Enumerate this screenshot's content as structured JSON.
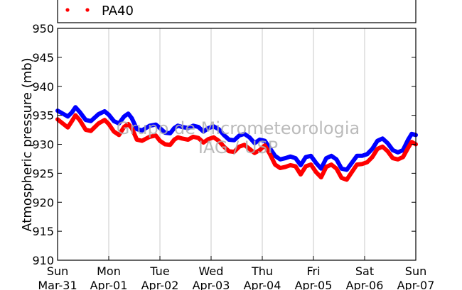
{
  "chart_data": {
    "type": "line",
    "ylabel": "Atmospheric pressure (mb)",
    "ylim": [
      910,
      950
    ],
    "yticks": [
      910,
      915,
      920,
      925,
      930,
      935,
      940,
      945,
      950
    ],
    "xticks": [
      {
        "day": "Sun",
        "date": "Mar-31"
      },
      {
        "day": "Mon",
        "date": "Apr-01"
      },
      {
        "day": "Tue",
        "date": "Apr-02"
      },
      {
        "day": "Wed",
        "date": "Apr-03"
      },
      {
        "day": "Thu",
        "date": "Apr-04"
      },
      {
        "day": "Fri",
        "date": "Apr-05"
      },
      {
        "day": "Sat",
        "date": "Apr-06"
      },
      {
        "day": "Sun",
        "date": "Apr-07"
      }
    ],
    "grid": "vertical",
    "legend_position": "top-left",
    "series": [
      {
        "name": "",
        "color": "#0000ff",
        "x": [
          0,
          0.1,
          0.2,
          0.28,
          0.35,
          0.43,
          0.55,
          0.65,
          0.8,
          0.92,
          1.0,
          1.1,
          1.2,
          1.3,
          1.38,
          1.45,
          1.55,
          1.65,
          1.8,
          1.92,
          2.0,
          2.1,
          2.2,
          2.28,
          2.35,
          2.43,
          2.55,
          2.65,
          2.75,
          2.85,
          2.95,
          3.05,
          3.15,
          3.25,
          3.35,
          3.45,
          3.55,
          3.65,
          3.75,
          3.85,
          3.95,
          4.05,
          4.15,
          4.25,
          4.35,
          4.45,
          4.55,
          4.65,
          4.75,
          4.85,
          4.95,
          5.05,
          5.15,
          5.25,
          5.35,
          5.45,
          5.55,
          5.65,
          5.75,
          5.85,
          5.95,
          6.05,
          6.15,
          6.25,
          6.35,
          6.45,
          6.55,
          6.65,
          6.75,
          6.85,
          6.92,
          7.0
        ],
        "y": [
          935.8,
          935.3,
          934.8,
          935.5,
          936.4,
          935.6,
          934.2,
          934.0,
          935.2,
          935.7,
          935.1,
          934.0,
          933.6,
          934.8,
          935.3,
          934.5,
          932.6,
          932.4,
          933.2,
          933.4,
          932.8,
          932.0,
          931.9,
          932.8,
          933.2,
          933.0,
          932.8,
          933.2,
          933.0,
          932.2,
          932.8,
          933.1,
          932.6,
          931.6,
          930.8,
          930.7,
          931.5,
          931.8,
          931.2,
          930.2,
          930.8,
          930.6,
          929.3,
          928.0,
          927.4,
          927.6,
          927.9,
          927.6,
          926.4,
          927.8,
          928.0,
          926.8,
          925.8,
          927.6,
          928.0,
          927.4,
          925.8,
          925.6,
          926.8,
          928.0,
          928.0,
          928.3,
          929.2,
          930.6,
          931.0,
          930.2,
          929.0,
          928.6,
          929.0,
          930.8,
          931.8,
          931.6
        ]
      },
      {
        "name": "PA40",
        "color": "#ff0000",
        "x": [
          0,
          0.1,
          0.2,
          0.28,
          0.35,
          0.43,
          0.55,
          0.65,
          0.8,
          0.92,
          1.0,
          1.1,
          1.2,
          1.3,
          1.38,
          1.45,
          1.55,
          1.65,
          1.8,
          1.92,
          2.0,
          2.1,
          2.2,
          2.28,
          2.35,
          2.43,
          2.55,
          2.65,
          2.75,
          2.85,
          2.95,
          3.05,
          3.15,
          3.25,
          3.35,
          3.45,
          3.55,
          3.65,
          3.75,
          3.85,
          3.95,
          4.05,
          4.15,
          4.25,
          4.35,
          4.45,
          4.55,
          4.65,
          4.75,
          4.85,
          4.95,
          5.05,
          5.15,
          5.25,
          5.35,
          5.45,
          5.55,
          5.65,
          5.75,
          5.85,
          5.95,
          6.05,
          6.15,
          6.25,
          6.35,
          6.45,
          6.55,
          6.65,
          6.75,
          6.85,
          6.92,
          7.0
        ],
        "y": [
          934.3,
          933.6,
          932.9,
          934.0,
          935.0,
          934.2,
          932.5,
          932.3,
          933.6,
          934.2,
          933.5,
          932.2,
          931.6,
          933.0,
          933.5,
          932.8,
          930.8,
          930.6,
          931.3,
          931.5,
          930.6,
          930.0,
          929.9,
          930.8,
          931.2,
          931.0,
          930.8,
          931.3,
          931.1,
          930.3,
          930.9,
          931.2,
          930.6,
          929.6,
          928.8,
          928.7,
          929.6,
          929.9,
          929.2,
          928.5,
          929.0,
          929.8,
          928.3,
          926.5,
          925.9,
          926.1,
          926.4,
          926.2,
          924.8,
          926.2,
          926.5,
          925.2,
          924.3,
          926.1,
          926.5,
          925.8,
          924.2,
          923.9,
          925.2,
          926.5,
          926.6,
          926.9,
          927.8,
          929.2,
          929.6,
          928.8,
          927.6,
          927.4,
          927.8,
          929.4,
          930.4,
          930.0
        ]
      }
    ]
  },
  "watermark": {
    "line1": "Grupo de Micrometeorologia",
    "line2": "IAG / USP"
  },
  "colors": {
    "grid": "#c8c8c8",
    "axis": "#000000"
  }
}
